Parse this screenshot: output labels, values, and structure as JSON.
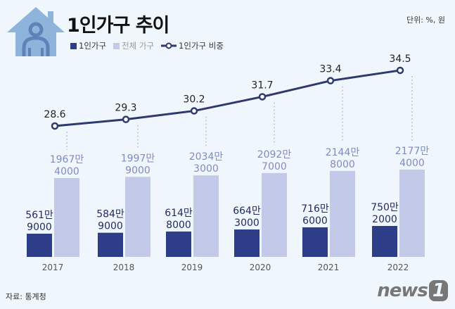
{
  "header": {
    "title": "1인가구 추이",
    "unit": "단위: %, 원"
  },
  "legend": {
    "single": "1인가구",
    "total": "전체 가구",
    "ratio": "1인가구 비중"
  },
  "source": "자료: 통계청",
  "logo": "news1",
  "colors": {
    "single": "#2e3d87",
    "total": "#c3c9e8",
    "line": "#2e3a6e",
    "house": "#8fb4dc"
  },
  "chart_data": {
    "type": "bar+line",
    "categories": [
      "2017",
      "2018",
      "2019",
      "2020",
      "2021",
      "2022"
    ],
    "series": [
      {
        "name": "1인가구",
        "type": "bar",
        "values": [
          5619000,
          5849000,
          6148000,
          6643000,
          7166000,
          7502000
        ],
        "labels": [
          [
            "561만",
            "9000"
          ],
          [
            "584만",
            "9000"
          ],
          [
            "614만",
            "8000"
          ],
          [
            "664만",
            "3000"
          ],
          [
            "716만",
            "6000"
          ],
          [
            "750만",
            "2000"
          ]
        ]
      },
      {
        "name": "전체 가구",
        "type": "bar",
        "values": [
          19674000,
          19979000,
          20343000,
          20927000,
          21448000,
          21774000
        ],
        "labels": [
          [
            "1967만",
            "4000"
          ],
          [
            "1997만",
            "9000"
          ],
          [
            "2034만",
            "3000"
          ],
          [
            "2092만",
            "7000"
          ],
          [
            "2144만",
            "8000"
          ],
          [
            "2177만",
            "4000"
          ]
        ]
      },
      {
        "name": "1인가구 비중",
        "type": "line",
        "values": [
          28.6,
          29.3,
          30.2,
          31.7,
          33.4,
          34.5
        ]
      }
    ]
  }
}
